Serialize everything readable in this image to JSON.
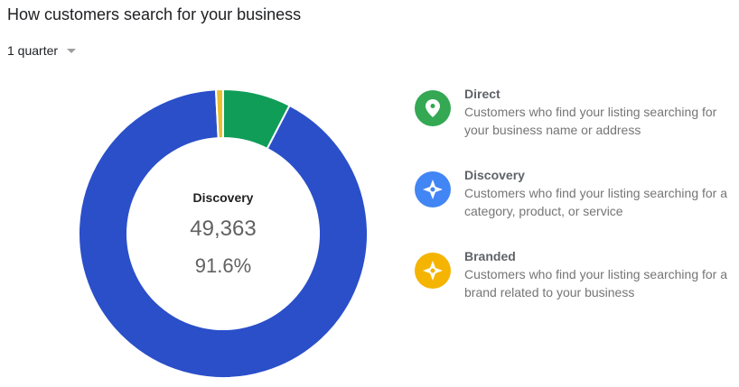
{
  "header": {
    "title": "How customers search for your business",
    "range": "1 quarter"
  },
  "center": {
    "label": "Discovery",
    "value": "49,363",
    "percent": "91.6%"
  },
  "legend": [
    {
      "name": "Direct",
      "desc": "Customers who find your listing searching for your business name or address",
      "color": "#0f9d58",
      "icon": "location-pin-icon"
    },
    {
      "name": "Discovery",
      "desc": "Customers who find your listing searching for a category, product, or service",
      "color": "#3367d6",
      "icon": "compass-icon"
    },
    {
      "name": "Branded",
      "desc": "Customers who find your listing searching for a brand related to your business",
      "color": "#f4b400",
      "icon": "compass-icon"
    }
  ],
  "chart_data": {
    "type": "pie",
    "donut": true,
    "categories": [
      "Direct",
      "Discovery",
      "Branded"
    ],
    "values": [
      7.6,
      91.6,
      0.8
    ],
    "unit": "%",
    "colors": [
      "#0f9d58",
      "#2a4fc9",
      "#e8c030"
    ],
    "highlighted": {
      "category": "Discovery",
      "count": 49363,
      "percent": 91.6
    },
    "legend_position": "right"
  }
}
